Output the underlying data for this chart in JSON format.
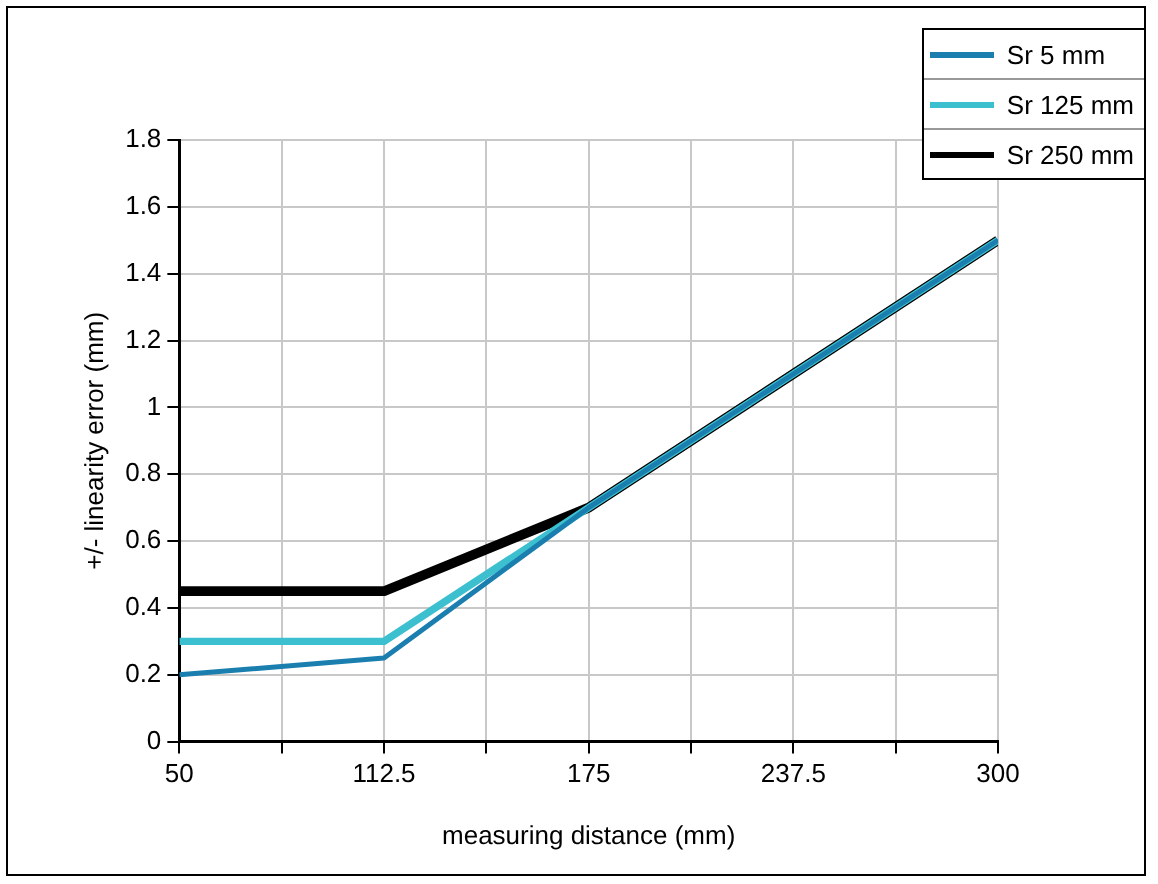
{
  "chart_data": {
    "type": "line",
    "xlabel": "measuring distance (mm)",
    "ylabel": "+/- linearity error (mm)",
    "x": [
      50,
      112.5,
      175,
      300
    ],
    "series": [
      {
        "name": "Sr 5 mm",
        "color": "#1a7fae",
        "values": [
          0.2,
          0.25,
          0.7,
          1.5
        ]
      },
      {
        "name": "Sr 125 mm",
        "color": "#3cc0d0",
        "values": [
          0.3,
          0.3,
          0.7,
          1.5
        ]
      },
      {
        "name": "Sr 250 mm",
        "color": "#000000",
        "values": [
          0.45,
          0.45,
          0.7,
          1.5
        ]
      }
    ],
    "xlim": [
      50,
      300
    ],
    "xticks": [
      50,
      {
        "value": 81.25,
        "label": null
      },
      112.5,
      {
        "value": 143.75,
        "label": null
      },
      175,
      {
        "value": 206.25,
        "label": null
      },
      237.5,
      {
        "value": 268.75,
        "label": null
      },
      300
    ],
    "ylim": [
      0,
      1.8
    ],
    "yticks": [
      0,
      0.2,
      0.4,
      0.6,
      0.8,
      1,
      1.2,
      1.4,
      1.6,
      1.8
    ],
    "grid": true,
    "legend": "top right",
    "marker": "none",
    "line_style": "solid"
  }
}
